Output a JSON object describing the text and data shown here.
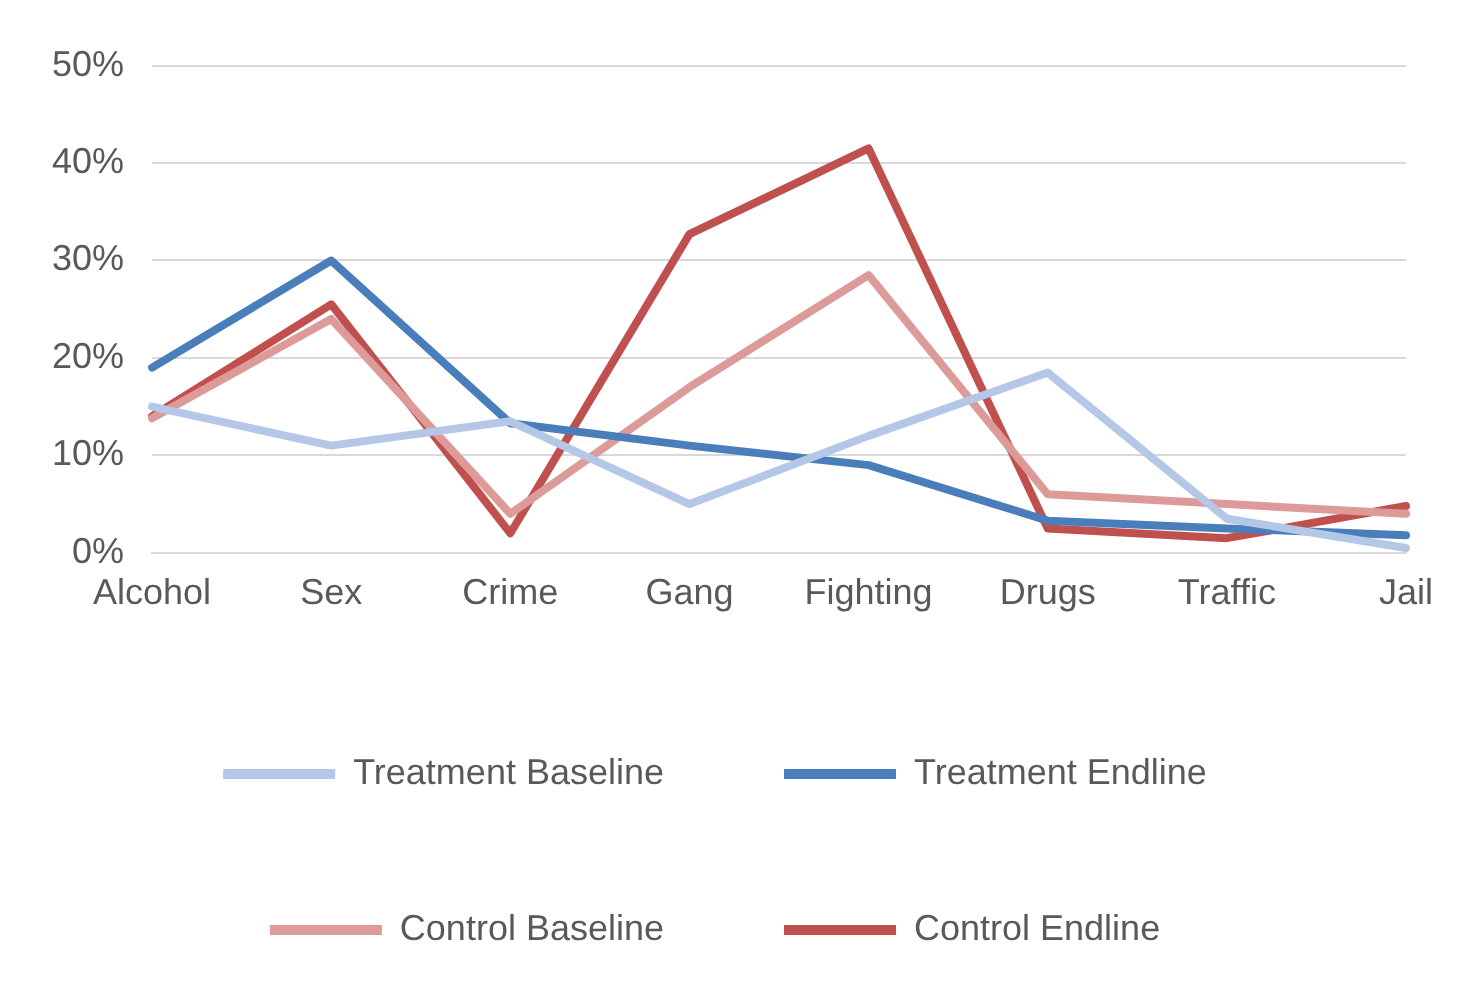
{
  "chart_data": {
    "type": "line",
    "categories": [
      "Alcohol",
      "Sex",
      "Crime",
      "Gang",
      "Fighting",
      "Drugs",
      "Traffic",
      "Jail"
    ],
    "series": [
      {
        "name": "Treatment Baseline",
        "color": "#b4c7e7",
        "values": [
          15,
          11,
          13.5,
          5,
          12,
          18.5,
          3.5,
          0.5
        ]
      },
      {
        "name": "Treatment Endline",
        "color": "#4a7ebb",
        "values": [
          19,
          30,
          13.3,
          11,
          9,
          3.3,
          2.5,
          1.8
        ]
      },
      {
        "name": "Control Baseline",
        "color": "#dc9a98",
        "values": [
          13.8,
          24,
          4,
          17,
          28.5,
          6,
          5,
          4
        ]
      },
      {
        "name": "Control Endline",
        "color": "#c0504d",
        "values": [
          14,
          25.5,
          2,
          32.7,
          41.5,
          2.5,
          1.5,
          4.8
        ]
      }
    ],
    "ylim": [
      0,
      50
    ],
    "yticks": [
      {
        "value": 0,
        "label": "0%"
      },
      {
        "value": 10,
        "label": "10%"
      },
      {
        "value": 20,
        "label": "20%"
      },
      {
        "value": 30,
        "label": "30%"
      },
      {
        "value": 40,
        "label": "40%"
      },
      {
        "value": 50,
        "label": "50%"
      }
    ],
    "grid": "y",
    "legend": "bottom",
    "marker": "none",
    "line_style": "solid"
  }
}
